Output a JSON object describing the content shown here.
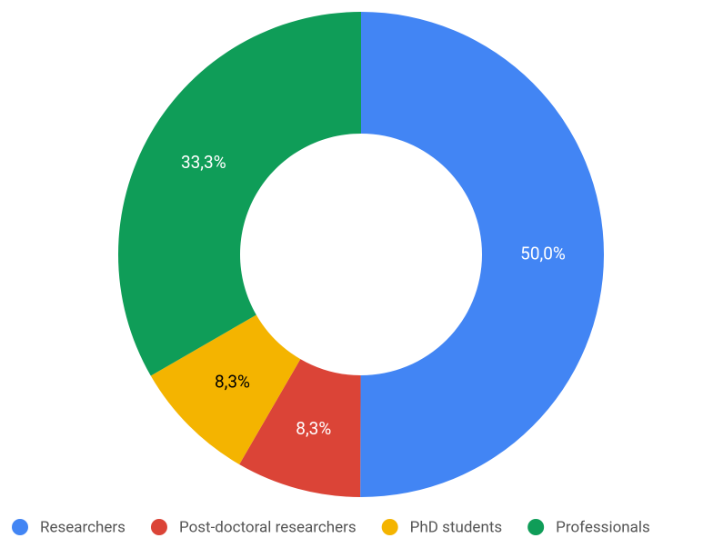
{
  "chart_data": {
    "type": "donut",
    "categories": [
      "Researchers",
      "Post-doctoral researchers",
      "PhD students",
      "Professionals"
    ],
    "values": [
      50.0,
      8.3,
      8.3,
      33.3
    ],
    "value_labels": [
      "50,0%",
      "8,3%",
      "8,3%",
      "33,3%"
    ],
    "colors": [
      "#4285f4",
      "#db4437",
      "#f4b400",
      "#0f9d58"
    ]
  }
}
